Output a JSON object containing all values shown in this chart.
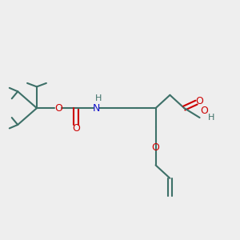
{
  "bg_color": "#eeeeee",
  "bond_color": "#3d7068",
  "o_color": "#cc0000",
  "n_color": "#1414cc",
  "h_color": "#3d7068",
  "line_width": 1.5,
  "figsize": [
    3.0,
    3.0
  ],
  "dpi": 100,
  "xlim": [
    0,
    10
  ],
  "ylim": [
    0,
    10
  ]
}
